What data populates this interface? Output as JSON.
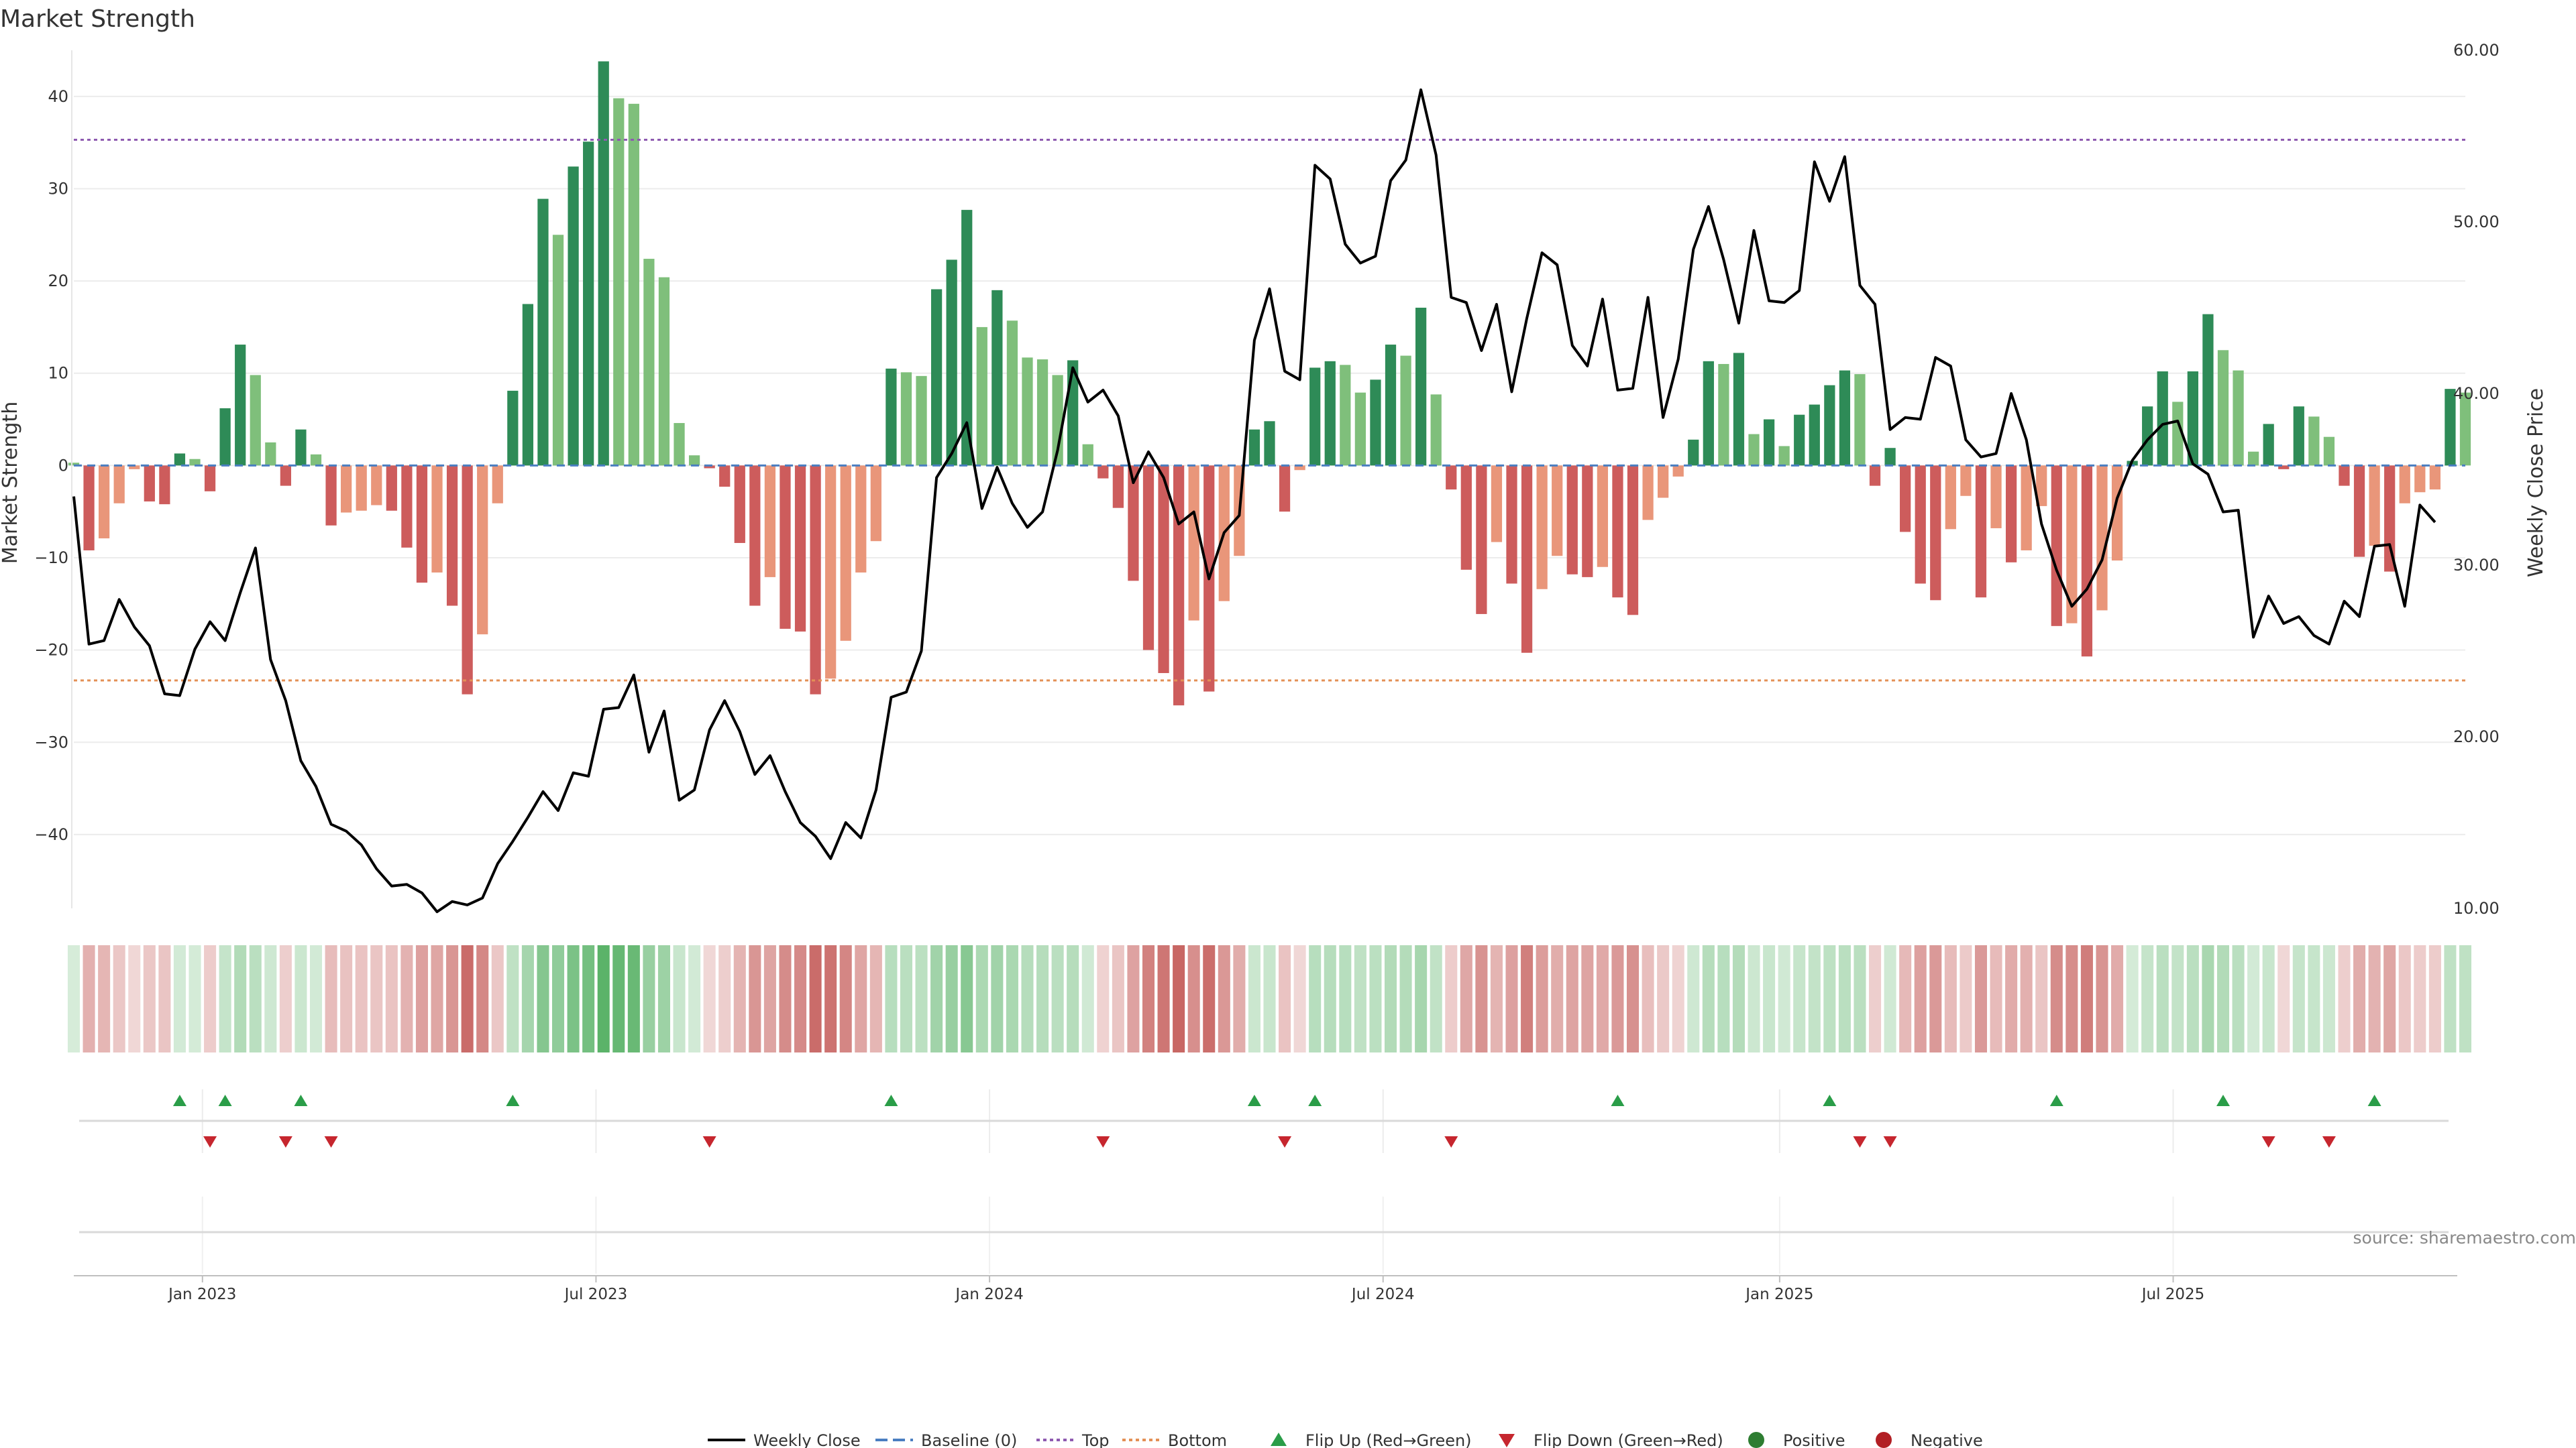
{
  "chart_data": {
    "type": "bar",
    "title": "Market Strength",
    "ylabel_left": "Market Strength",
    "ylabel_right": "Weekly Close Price",
    "source": "source: sharemaestro.com",
    "ylim_left": [
      -48,
      45
    ],
    "yticks_left": [
      40,
      30,
      20,
      10,
      0,
      -10,
      -20,
      -30,
      -40
    ],
    "ytick_labels_left": [
      "40",
      "30",
      "20",
      "10",
      "0",
      "−10",
      "−20",
      "−30",
      "−40"
    ],
    "ylim_right": [
      10,
      60
    ],
    "yticks_right": [
      60,
      50,
      40,
      30,
      20,
      10
    ],
    "ytick_labels_right": [
      "60.00",
      "50.00",
      "40.00",
      "30.00",
      "20.00",
      "10.00"
    ],
    "x_tick_labels": [
      "Jan 2023",
      "Jul 2023",
      "Jan 2024",
      "Jul 2024",
      "Jan 2025",
      "Jul 2025"
    ],
    "x_tick_weeks": [
      8.5,
      34.5,
      60.5,
      86.5,
      112.7,
      138.7
    ],
    "top_line": 35.3,
    "bottom_line": -23.3,
    "baseline": 0,
    "series": [
      {
        "name": "Market Strength",
        "values": [
          0.3,
          -9.2,
          -7.9,
          -4.1,
          -0.4,
          -3.9,
          -4.2,
          1.3,
          0.7,
          -2.8,
          6.2,
          13.1,
          9.8,
          2.5,
          -2.2,
          3.9,
          1.2,
          -6.5,
          -5.1,
          -4.9,
          -4.3,
          -4.9,
          -8.9,
          -12.7,
          -11.6,
          -15.2,
          -24.8,
          -18.3,
          -4.1,
          8.1,
          17.5,
          28.9,
          25,
          32.4,
          35.1,
          43.8,
          39.8,
          39.2,
          22.4,
          20.4,
          4.6,
          1.1,
          -0.3,
          -2.3,
          -8.4,
          -15.2,
          -12.1,
          -17.7,
          -18,
          -24.8,
          -23.1,
          -19,
          -11.6,
          -8.2,
          10.5,
          10.1,
          9.7,
          19.1,
          22.3,
          27.7,
          15,
          19,
          15.7,
          11.7,
          11.5,
          9.8,
          11.4,
          2.3,
          -1.4,
          -4.6,
          -12.5,
          -20,
          -22.5,
          -26,
          -16.8,
          -24.5,
          -14.7,
          -9.8,
          3.9,
          4.8,
          -5,
          -0.5,
          10.6,
          11.3,
          10.9,
          7.9,
          9.3,
          13.1,
          11.9,
          17.1,
          7.7,
          -2.6,
          -11.3,
          -16.1,
          -8.3,
          -12.8,
          -20.3,
          -13.4,
          -9.8,
          -11.8,
          -12.1,
          -11,
          -14.3,
          -16.2,
          -5.9,
          -3.5,
          -1.2,
          2.8,
          11.3,
          11,
          12.2,
          3.4,
          5,
          2.1,
          5.5,
          6.6,
          8.7,
          10.3,
          9.9,
          -2.2,
          1.9,
          -7.2,
          -12.8,
          -14.6,
          -6.9,
          -3.3,
          -14.3,
          -6.8,
          -10.5,
          -9.2,
          -4.4,
          -17.4,
          -17.1,
          -20.7,
          -15.7,
          -10.3,
          0.5,
          6.4,
          10.2,
          6.9,
          10.2,
          16.4,
          12.5,
          10.3,
          1.5,
          4.5,
          -0.4,
          6.4,
          5.3,
          3.1,
          -2.2,
          -9.9,
          -8.7,
          -11.5,
          -4.1,
          -2.9,
          -2.6,
          8.3,
          7.9
        ]
      },
      {
        "name": "Weekly Close",
        "values": [
          34,
          25.4,
          25.6,
          28,
          26.4,
          25.3,
          22.5,
          22.4,
          25.1,
          26.7,
          25.6,
          28.4,
          31,
          24.5,
          22.1,
          18.6,
          17.1,
          14.9,
          14.5,
          13.7,
          12.3,
          11.3,
          11.4,
          10.9,
          9.8,
          10.4,
          10.2,
          10.6,
          12.6,
          13.9,
          15.3,
          16.8,
          15.7,
          17.9,
          17.7,
          21.6,
          21.7,
          23.6,
          19.1,
          21.5,
          16.3,
          16.9,
          20.4,
          22.1,
          20.3,
          17.8,
          18.9,
          16.8,
          15,
          14.2,
          12.9,
          15,
          14.1,
          16.9,
          22.3,
          22.6,
          25,
          35.1,
          36.5,
          38.3,
          33.3,
          35.7,
          33.6,
          32.2,
          33.1,
          36.7,
          41.5,
          39.5,
          40.2,
          38.7,
          34.8,
          36.6,
          35.1,
          32.4,
          33.1,
          29.2,
          31.9,
          32.9,
          43.1,
          46.1,
          41.3,
          40.8,
          53.3,
          52.5,
          48.7,
          47.6,
          48,
          52.4,
          53.6,
          57.7,
          53.9,
          45.6,
          45.3,
          42.5,
          45.2,
          40.1,
          44.4,
          48.2,
          47.5,
          42.8,
          41.6,
          45.5,
          40.2,
          40.3,
          45.6,
          38.6,
          42,
          48.4,
          50.9,
          47.8,
          44.1,
          49.5,
          45.4,
          45.3,
          46,
          53.5,
          51.2,
          53.8,
          46.3,
          45.2,
          37.9,
          38.6,
          38.5,
          42.1,
          41.6,
          37.3,
          36.3,
          36.5,
          40,
          37.3,
          32.4,
          29.7,
          27.6,
          28.6,
          30.3,
          33.9,
          36.1,
          37.3,
          38.2,
          38.4,
          35.9,
          35.3,
          33.1,
          33.2,
          25.8,
          28.2,
          26.6,
          27,
          25.9,
          25.4,
          27.9,
          27,
          31.1,
          31.2,
          27.6,
          33.5,
          32.5
        ]
      },
      {
        "name": "Top",
        "values": [
          35.3
        ]
      },
      {
        "name": "Bottom",
        "values": [
          -23.3
        ]
      }
    ],
    "flip_up_weeks": [
      7,
      10,
      15,
      29,
      54,
      78,
      82,
      102,
      116,
      131,
      142,
      152
    ],
    "flip_down_weeks": [
      9,
      14,
      17,
      42,
      68,
      80,
      91,
      118,
      120,
      145,
      149
    ],
    "legend": [
      {
        "label": "Weekly Close",
        "marker": "solid-line",
        "color": "#000000"
      },
      {
        "label": "Baseline (0)",
        "marker": "dashed-line",
        "color": "#4a7ec1"
      },
      {
        "label": "Top",
        "marker": "dotted-line",
        "color": "#8e5ab0"
      },
      {
        "label": "Bottom",
        "marker": "dotted-line",
        "color": "#e39056"
      },
      {
        "label": "Flip Up (Red→Green)",
        "marker": "triangle-up",
        "color": "#2a9d48"
      },
      {
        "label": "Flip Down (Green→Red)",
        "marker": "triangle-down",
        "color": "#c6262e"
      },
      {
        "label": "Positive",
        "marker": "circle",
        "color": "#2e7d32"
      },
      {
        "label": "Negative",
        "marker": "circle",
        "color": "#b21f24"
      }
    ],
    "colors": {
      "pos_strong": "#2e8b57",
      "pos_light": "#7fbf7b",
      "neg_strong": "#cd5c5c",
      "neg_light": "#e9967a",
      "heat_green": "#43a853",
      "heat_red": "#c0504d",
      "close_line": "#000000",
      "flip_up": "#2a9d48",
      "flip_down": "#c6262e"
    }
  }
}
